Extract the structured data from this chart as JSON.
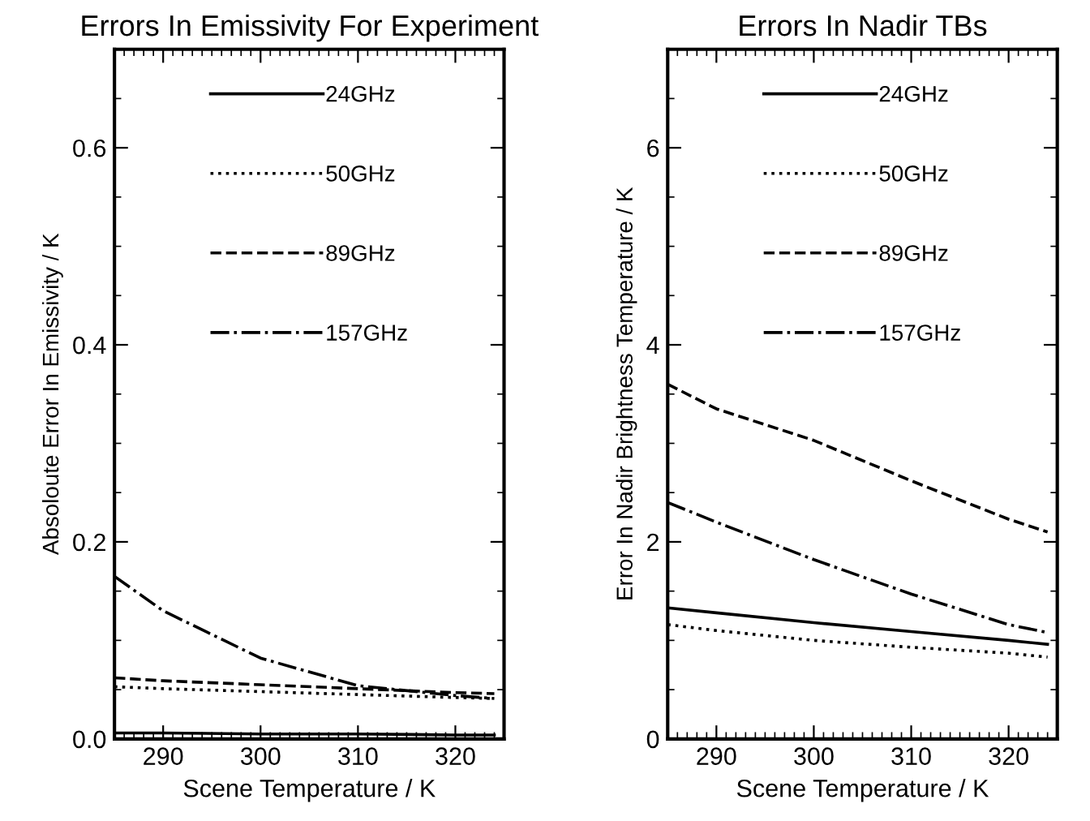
{
  "chart_data": [
    {
      "type": "line",
      "title": "Errors In Emissivity For Experiment",
      "xlabel": "Scene Temperature / K",
      "ylabel": "Absoloute Error In Emissivity / K",
      "xlim": [
        285,
        325
      ],
      "xticks": [
        290,
        300,
        310,
        320
      ],
      "ylim": [
        0,
        0.7
      ],
      "yticks": [
        {
          "value": 0,
          "label": "0.0"
        },
        0.2,
        0.4,
        0.6
      ],
      "grid": false,
      "legend": "top",
      "marker": "none",
      "x": [
        285,
        290,
        300,
        310,
        320,
        324
      ],
      "series": [
        {
          "name": "24GHz",
          "color": "#000000",
          "line_style": "solid",
          "values": [
            0.006,
            0.006,
            0.005,
            0.005,
            0.004,
            0.004
          ]
        },
        {
          "name": "50GHz",
          "color": "#000000",
          "line_style": "dotted",
          "values": [
            0.053,
            0.051,
            0.048,
            0.045,
            0.042,
            0.041
          ]
        },
        {
          "name": "89GHz",
          "color": "#000000",
          "line_style": "dashed",
          "values": [
            0.062,
            0.059,
            0.055,
            0.051,
            0.047,
            0.046
          ]
        },
        {
          "name": "157GHz",
          "color": "#000000",
          "line_style": "dashdot",
          "values": [
            0.165,
            0.13,
            0.082,
            0.054,
            0.044,
            0.041
          ]
        }
      ]
    },
    {
      "type": "line",
      "title": "Errors In Nadir TBs",
      "xlabel": "Scene Temperature / K",
      "ylabel": "Error In Nadir Brightness Temperature / K",
      "xlim": [
        285,
        325
      ],
      "xticks": [
        290,
        300,
        310,
        320
      ],
      "ylim": [
        0,
        7
      ],
      "yticks": [
        0,
        2,
        4,
        6
      ],
      "grid": false,
      "legend": "top",
      "marker": "none",
      "x": [
        285,
        290,
        300,
        310,
        320,
        324
      ],
      "series": [
        {
          "name": "24GHz",
          "color": "#000000",
          "line_style": "solid",
          "values": [
            1.33,
            1.28,
            1.18,
            1.09,
            1.0,
            0.96
          ]
        },
        {
          "name": "50GHz",
          "color": "#000000",
          "line_style": "dotted",
          "values": [
            1.16,
            1.1,
            1.0,
            0.93,
            0.87,
            0.83
          ]
        },
        {
          "name": "89GHz",
          "color": "#000000",
          "line_style": "dashed",
          "values": [
            3.6,
            3.35,
            3.03,
            2.62,
            2.23,
            2.1
          ]
        },
        {
          "name": "157GHz",
          "color": "#000000",
          "line_style": "dashdot",
          "values": [
            2.4,
            2.2,
            1.82,
            1.47,
            1.16,
            1.08
          ]
        }
      ]
    }
  ]
}
